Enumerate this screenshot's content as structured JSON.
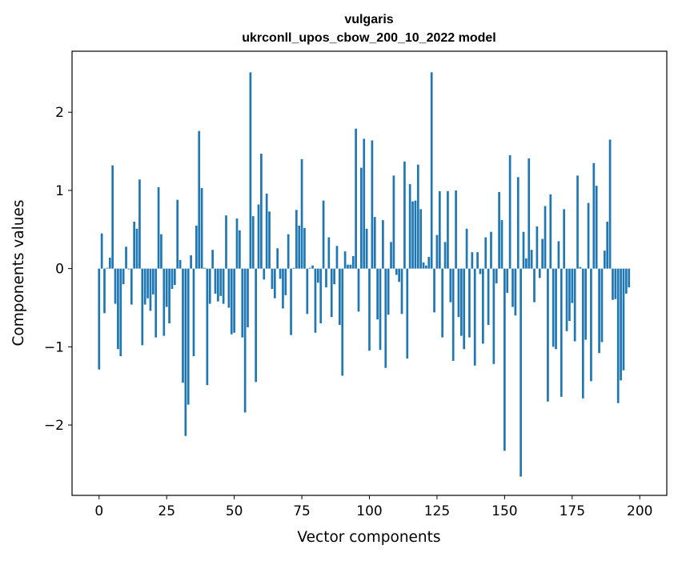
{
  "chart_data": {
    "type": "bar",
    "title": "vulgaris",
    "subtitle": "ukrconll_upos_cbow_200_10_2022 model",
    "xlabel": "Vector components",
    "ylabel": "Components values",
    "xlim": [
      -10,
      210
    ],
    "ylim": [
      -2.9,
      2.78
    ],
    "xticks": [
      0,
      25,
      50,
      75,
      100,
      125,
      150,
      175,
      200
    ],
    "xtick_labels": [
      "0",
      "25",
      "50",
      "75",
      "100",
      "125",
      "150",
      "175",
      "200"
    ],
    "yticks": [
      -2,
      -1,
      0,
      1,
      2
    ],
    "ytick_labels": [
      "−2",
      "−1",
      "0",
      "1",
      "2"
    ],
    "bar_color": "#1f77b4",
    "grid": false,
    "values": [
      -1.29,
      0.45,
      -0.57,
      0.01,
      0.14,
      1.32,
      -0.45,
      -1.03,
      -1.12,
      -0.2,
      0.28,
      -0.01,
      -0.46,
      0.6,
      0.51,
      1.14,
      -0.98,
      -0.46,
      -0.38,
      -0.54,
      -0.33,
      -0.88,
      1.04,
      0.44,
      -0.86,
      -0.49,
      -0.7,
      -0.26,
      -0.21,
      0.88,
      0.11,
      -1.46,
      -2.14,
      -1.74,
      0.17,
      -1.12,
      0.55,
      1.76,
      1.03,
      0.01,
      -1.49,
      -0.45,
      0.24,
      -0.32,
      -0.42,
      -0.35,
      -0.45,
      0.68,
      -0.5,
      -0.84,
      -0.82,
      0.64,
      0.49,
      -0.88,
      -1.84,
      -0.75,
      2.51,
      0.67,
      -1.45,
      0.82,
      1.47,
      -0.14,
      0.96,
      0.73,
      -0.26,
      -0.38,
      0.26,
      -0.13,
      -0.51,
      -0.34,
      0.44,
      -0.85,
      0.01,
      0.75,
      0.55,
      1.4,
      0.52,
      -0.58,
      0.01,
      0.04,
      -0.82,
      -0.18,
      -0.7,
      0.87,
      -0.24,
      0.4,
      -0.62,
      -0.2,
      0.29,
      -0.72,
      -1.37,
      0.22,
      0.05,
      0.05,
      0.16,
      1.79,
      -0.55,
      1.29,
      1.66,
      0.51,
      -1.05,
      1.64,
      0.66,
      -0.65,
      -1.04,
      0.62,
      -1.27,
      -0.59,
      0.34,
      1.19,
      -0.08,
      -0.17,
      -0.58,
      1.37,
      -1.15,
      1.08,
      0.86,
      0.87,
      1.33,
      0.76,
      0.08,
      0.04,
      0.15,
      2.51,
      -0.56,
      0.43,
      0.99,
      -0.88,
      0.34,
      0.99,
      -0.43,
      -1.18,
      1.0,
      -0.62,
      -0.86,
      -1.03,
      0.51,
      -0.88,
      0.21,
      -1.24,
      0.21,
      -0.07,
      -0.96,
      0.4,
      -0.72,
      0.47,
      -1.22,
      -0.19,
      0.98,
      0.62,
      -2.33,
      -0.31,
      1.45,
      -0.49,
      -0.6,
      1.17,
      -2.66,
      0.47,
      0.13,
      1.41,
      0.24,
      -0.43,
      0.54,
      -0.12,
      0.38,
      0.8,
      -1.7,
      0.95,
      -1.0,
      -1.03,
      0.35,
      -1.64,
      0.76,
      -0.8,
      -0.67,
      -0.44,
      -0.93,
      1.19,
      0.02,
      -1.66,
      -0.91,
      0.84,
      -1.44,
      1.35,
      1.06,
      -1.08,
      -0.94,
      0.23,
      0.6,
      1.65,
      -0.4,
      -0.39,
      -1.72,
      -1.43,
      -1.3,
      -0.32,
      -0.24
    ]
  }
}
